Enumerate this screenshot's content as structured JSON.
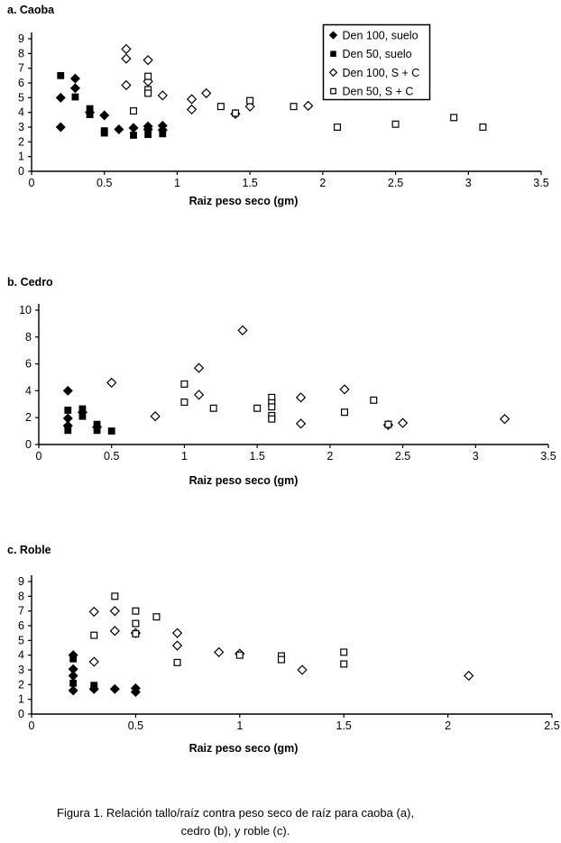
{
  "figure": {
    "caption_line1": "Figura 1. Relación tallo/raíz contra peso seco de raíz para caoba (a),",
    "caption_line2": "cedro (b), y roble (c)."
  },
  "colors": {
    "marker": "#000000",
    "background": "#ffffff"
  },
  "chart_data": [
    {
      "type": "scatter",
      "id": "a",
      "title": "a. Caoba",
      "xlabel": "Raiz peso seco (gm)",
      "ylabel": "",
      "xlim": [
        0,
        3.5
      ],
      "xstep": 0.5,
      "ylim": [
        0,
        9
      ],
      "ystep": 1,
      "grid": false,
      "legend": true,
      "legend_position": "top-right",
      "series": [
        {
          "name": "Den 100, suelo",
          "marker": "diamond-filled",
          "points": [
            [
              0.2,
              5.0
            ],
            [
              0.2,
              3.0
            ],
            [
              0.3,
              6.3
            ],
            [
              0.3,
              5.65
            ],
            [
              0.4,
              4.0
            ],
            [
              0.5,
              3.8
            ],
            [
              0.6,
              2.85
            ],
            [
              0.7,
              2.95
            ],
            [
              0.8,
              3.05
            ],
            [
              0.8,
              2.85
            ],
            [
              0.9,
              3.1
            ],
            [
              0.9,
              2.8
            ]
          ]
        },
        {
          "name": "Den 50, suelo",
          "marker": "square-filled",
          "points": [
            [
              0.2,
              6.5
            ],
            [
              0.3,
              5.05
            ],
            [
              0.4,
              4.25
            ],
            [
              0.4,
              3.85
            ],
            [
              0.5,
              2.75
            ],
            [
              0.5,
              2.6
            ],
            [
              0.7,
              2.45
            ],
            [
              0.8,
              2.5
            ],
            [
              0.9,
              2.55
            ]
          ]
        },
        {
          "name": "Den 100, S + C",
          "marker": "diamond-open",
          "points": [
            [
              0.65,
              8.3
            ],
            [
              0.65,
              7.65
            ],
            [
              0.65,
              5.85
            ],
            [
              0.8,
              7.55
            ],
            [
              0.8,
              6.1
            ],
            [
              0.9,
              5.15
            ],
            [
              1.1,
              4.9
            ],
            [
              1.1,
              4.2
            ],
            [
              1.2,
              5.3
            ],
            [
              1.4,
              3.9
            ],
            [
              1.5,
              4.4
            ],
            [
              1.9,
              4.45
            ]
          ]
        },
        {
          "name": "Den 50, S + C",
          "marker": "square-open",
          "points": [
            [
              0.7,
              4.1
            ],
            [
              0.8,
              6.45
            ],
            [
              0.8,
              5.55
            ],
            [
              0.8,
              5.3
            ],
            [
              1.3,
              4.4
            ],
            [
              1.4,
              3.95
            ],
            [
              1.5,
              4.8
            ],
            [
              1.8,
              4.4
            ],
            [
              2.1,
              3.0
            ],
            [
              2.5,
              3.2
            ],
            [
              2.9,
              3.65
            ],
            [
              3.1,
              3.0
            ]
          ]
        }
      ]
    },
    {
      "type": "scatter",
      "id": "b",
      "title": "b. Cedro",
      "xlabel": "Raiz peso seco (gm)",
      "ylabel": "",
      "xlim": [
        0,
        3.5
      ],
      "xstep": 0.5,
      "ylim": [
        0,
        10
      ],
      "ystep": 2,
      "grid": false,
      "legend": false,
      "series": [
        {
          "name": "Den 100, suelo",
          "marker": "diamond-filled",
          "points": [
            [
              0.2,
              4.0
            ],
            [
              0.2,
              1.95
            ],
            [
              0.2,
              1.4
            ],
            [
              0.3,
              2.4
            ],
            [
              0.4,
              1.3
            ]
          ]
        },
        {
          "name": "Den 50, suelo",
          "marker": "square-filled",
          "points": [
            [
              0.2,
              2.55
            ],
            [
              0.2,
              1.05
            ],
            [
              0.3,
              2.65
            ],
            [
              0.3,
              2.1
            ],
            [
              0.4,
              1.5
            ],
            [
              0.4,
              1.05
            ],
            [
              0.5,
              1.0
            ]
          ]
        },
        {
          "name": "Den 100, S + C",
          "marker": "diamond-open",
          "points": [
            [
              0.5,
              4.6
            ],
            [
              0.8,
              2.1
            ],
            [
              1.1,
              5.7
            ],
            [
              1.1,
              3.7
            ],
            [
              1.4,
              8.5
            ],
            [
              1.8,
              3.5
            ],
            [
              1.8,
              1.55
            ],
            [
              2.1,
              4.1
            ],
            [
              2.4,
              1.45
            ],
            [
              2.5,
              1.6
            ],
            [
              3.2,
              1.9
            ]
          ]
        },
        {
          "name": "Den 50, S + C",
          "marker": "square-open",
          "points": [
            [
              1.0,
              4.5
            ],
            [
              1.0,
              3.15
            ],
            [
              1.2,
              2.7
            ],
            [
              1.5,
              2.7
            ],
            [
              1.6,
              3.5
            ],
            [
              1.6,
              3.1
            ],
            [
              1.6,
              2.8
            ],
            [
              1.6,
              2.15
            ],
            [
              1.6,
              1.9
            ],
            [
              2.1,
              2.4
            ],
            [
              2.3,
              3.3
            ],
            [
              2.4,
              1.5
            ]
          ]
        }
      ]
    },
    {
      "type": "scatter",
      "id": "c",
      "title": "c. Roble",
      "xlabel": "Raiz peso seco (gm)",
      "ylabel": "",
      "xlim": [
        0,
        2.5
      ],
      "xstep": 0.5,
      "ylim": [
        0,
        9
      ],
      "ystep": 1,
      "grid": false,
      "legend": false,
      "series": [
        {
          "name": "Den 100, suelo",
          "marker": "diamond-filled",
          "points": [
            [
              0.2,
              4.0
            ],
            [
              0.2,
              3.05
            ],
            [
              0.2,
              2.6
            ],
            [
              0.2,
              1.6
            ],
            [
              0.3,
              1.7
            ],
            [
              0.4,
              1.7
            ],
            [
              0.5,
              1.75
            ],
            [
              0.5,
              1.5
            ]
          ]
        },
        {
          "name": "Den 50, suelo",
          "marker": "square-filled",
          "points": [
            [
              0.2,
              3.75
            ],
            [
              0.2,
              2.1
            ],
            [
              0.3,
              1.95
            ],
            [
              0.3,
              1.8
            ]
          ]
        },
        {
          "name": "Den 100, S + C",
          "marker": "diamond-open",
          "points": [
            [
              0.3,
              6.95
            ],
            [
              0.3,
              3.55
            ],
            [
              0.4,
              7.0
            ],
            [
              0.4,
              5.65
            ],
            [
              0.5,
              5.5
            ],
            [
              0.7,
              5.5
            ],
            [
              0.7,
              4.65
            ],
            [
              0.9,
              4.2
            ],
            [
              1.0,
              4.1
            ],
            [
              1.3,
              3.0
            ],
            [
              2.1,
              2.6
            ]
          ]
        },
        {
          "name": "Den 50, S + C",
          "marker": "square-open",
          "points": [
            [
              0.3,
              5.35
            ],
            [
              0.4,
              8.0
            ],
            [
              0.5,
              7.0
            ],
            [
              0.5,
              6.15
            ],
            [
              0.5,
              5.45
            ],
            [
              0.6,
              6.6
            ],
            [
              0.7,
              3.5
            ],
            [
              1.0,
              4.0
            ],
            [
              1.2,
              3.95
            ],
            [
              1.2,
              3.7
            ],
            [
              1.5,
              4.2
            ],
            [
              1.5,
              3.4
            ]
          ]
        }
      ]
    }
  ]
}
